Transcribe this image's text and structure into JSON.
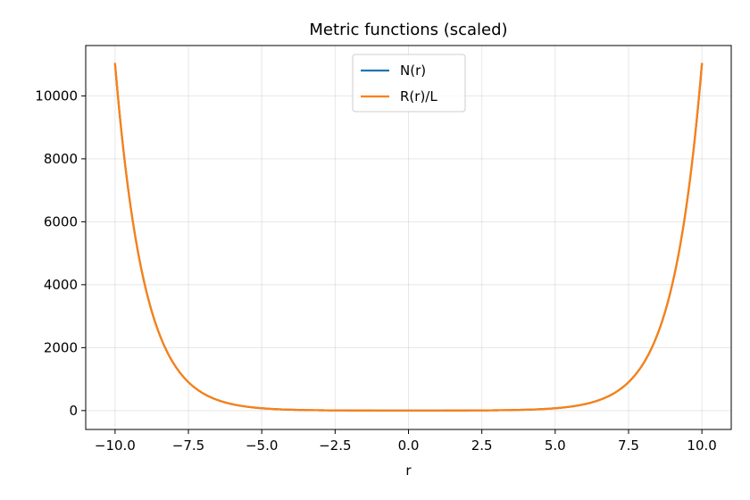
{
  "chart_data": {
    "type": "line",
    "title": "Metric functions (scaled)",
    "xlabel": "r",
    "ylabel": "",
    "xlim": [
      -11,
      11
    ],
    "ylim": [
      -600,
      11600
    ],
    "xticks": [
      -10,
      -7.5,
      -5,
      -2.5,
      0,
      2.5,
      5,
      7.5,
      10
    ],
    "xtick_labels": [
      "−10.0",
      "−7.5",
      "−5.0",
      "−2.5",
      "0.0",
      "2.5",
      "5.0",
      "7.5",
      "10.0"
    ],
    "yticks": [
      0,
      2000,
      4000,
      6000,
      8000,
      10000
    ],
    "ytick_labels": [
      "0",
      "2000",
      "4000",
      "6000",
      "8000",
      "10000"
    ],
    "grid": true,
    "legend_position": "upper center",
    "x": [
      -10,
      -9.5,
      -9,
      -8.5,
      -8,
      -7.5,
      -7,
      -6.5,
      -6,
      -5.5,
      -5,
      -4.5,
      -4,
      -3.5,
      -3,
      -2.5,
      -2,
      -1.5,
      -1,
      -0.5,
      0,
      0.5,
      1,
      1.5,
      2,
      2.5,
      3,
      3.5,
      4,
      4.5,
      5,
      5.5,
      6,
      6.5,
      7,
      7.5,
      8,
      8.5,
      9,
      9.5,
      10
    ],
    "series": [
      {
        "name": "N(r)",
        "color": "#1f77b4",
        "values": [
          11013,
          6680,
          4052,
          2457,
          1490,
          904,
          548,
          333,
          202,
          122,
          74,
          45,
          27.3,
          16.6,
          10.1,
          6.1,
          3.8,
          2.4,
          1.5,
          1.1,
          1,
          1.1,
          1.5,
          2.4,
          3.8,
          6.1,
          10.1,
          16.6,
          27.3,
          45,
          74,
          122,
          202,
          333,
          548,
          904,
          1490,
          2457,
          4052,
          6680,
          11013
        ]
      },
      {
        "name": "R(r)/L",
        "color": "#ff7f0e",
        "values": [
          11013,
          6680,
          4052,
          2457,
          1490,
          904,
          548,
          333,
          202,
          122,
          74,
          45,
          27.3,
          16.6,
          10.1,
          6.1,
          3.8,
          2.4,
          1.5,
          1.1,
          1,
          1.1,
          1.5,
          2.4,
          3.8,
          6.1,
          10.1,
          16.6,
          27.3,
          45,
          74,
          122,
          202,
          333,
          548,
          904,
          1490,
          2457,
          4052,
          6680,
          11013
        ]
      }
    ]
  }
}
